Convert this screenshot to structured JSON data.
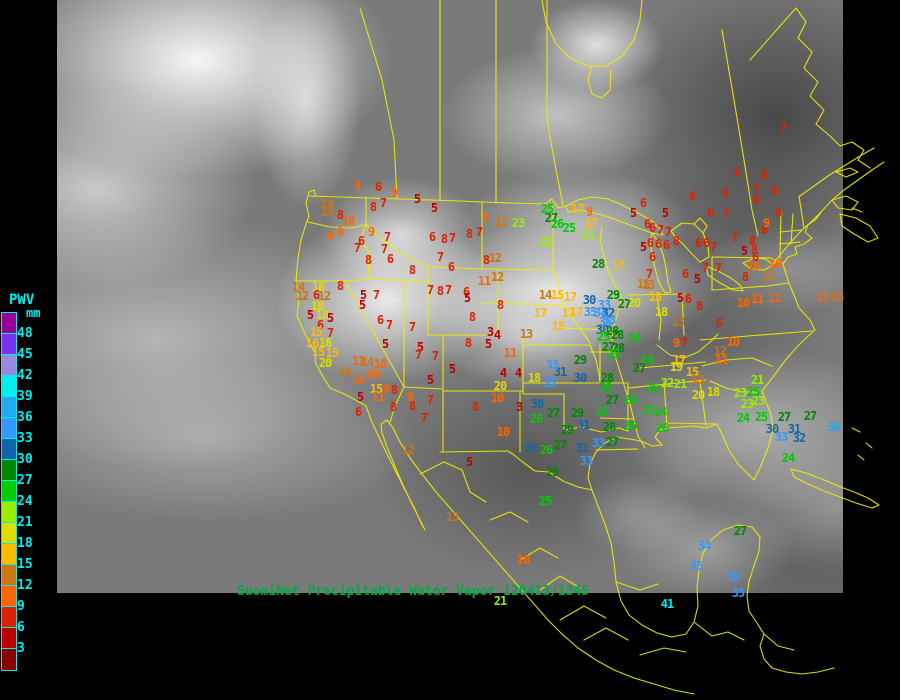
{
  "title": {
    "text": "SuomiNet Precipitable Water Vapor 120413/1345",
    "color": "#00AA44"
  },
  "legend": {
    "title": "PWV",
    "unit": "mm",
    "label_color": "#00EEEE",
    "labels": [
      48,
      45,
      42,
      39,
      36,
      33,
      30,
      27,
      24,
      21,
      18,
      15,
      12,
      9,
      6,
      3
    ],
    "colors_top_to_bottom": [
      "#990099",
      "#7733EE",
      "#9988DD",
      "#00EEEE",
      "#22AAEE",
      "#3399FF",
      "#1166AA",
      "#008800",
      "#00CC00",
      "#99EE00",
      "#DDDD00",
      "#FFBB00",
      "#CC7711",
      "#FF6600",
      "#DD2200",
      "#BB0000",
      "#880000"
    ]
  },
  "map": {
    "line_color": "#EEEE00",
    "background": "#000000"
  },
  "stations": [
    [
      9,
      357,
      186
    ],
    [
      6,
      378,
      187
    ],
    [
      9,
      394,
      193
    ],
    [
      5,
      417,
      199
    ],
    [
      14,
      327,
      204
    ],
    [
      7,
      383,
      203
    ],
    [
      8,
      373,
      207
    ],
    [
      14,
      327,
      212
    ],
    [
      8,
      340,
      215
    ],
    [
      10,
      348,
      221
    ],
    [
      5,
      434,
      208
    ],
    [
      9,
      485,
      218
    ],
    [
      9,
      340,
      232
    ],
    [
      9,
      330,
      236
    ],
    [
      9,
      371,
      232
    ],
    [
      7,
      387,
      237
    ],
    [
      6,
      361,
      241
    ],
    [
      7,
      357,
      248
    ],
    [
      7,
      384,
      249
    ],
    [
      6,
      390,
      259
    ],
    [
      8,
      368,
      260
    ],
    [
      6,
      432,
      237
    ],
    [
      8,
      444,
      239
    ],
    [
      7,
      452,
      238
    ],
    [
      8,
      469,
      234
    ],
    [
      7,
      479,
      232
    ],
    [
      6,
      451,
      267
    ],
    [
      7,
      440,
      257
    ],
    [
      8,
      412,
      270
    ],
    [
      12,
      495,
      258
    ],
    [
      8,
      486,
      260
    ],
    [
      12,
      501,
      222
    ],
    [
      23,
      518,
      223
    ],
    [
      25,
      547,
      209
    ],
    [
      27,
      551,
      218
    ],
    [
      26,
      557,
      224
    ],
    [
      25,
      569,
      228
    ],
    [
      22,
      545,
      242
    ],
    [
      17,
      577,
      209
    ],
    [
      9,
      589,
      212
    ],
    [
      17,
      591,
      223
    ],
    [
      21,
      588,
      235
    ],
    [
      28,
      598,
      264
    ],
    [
      17,
      618,
      265
    ],
    [
      6,
      643,
      203
    ],
    [
      5,
      633,
      213
    ],
    [
      6,
      652,
      228
    ],
    [
      7,
      660,
      230
    ],
    [
      6,
      650,
      243
    ],
    [
      6,
      658,
      244
    ],
    [
      6,
      666,
      245
    ],
    [
      8,
      676,
      241
    ],
    [
      5,
      643,
      247
    ],
    [
      6,
      652,
      257
    ],
    [
      13,
      648,
      285
    ],
    [
      6,
      692,
      196
    ],
    [
      7,
      783,
      128
    ],
    [
      6,
      647,
      224
    ],
    [
      7,
      430,
      290
    ],
    [
      8,
      440,
      291
    ],
    [
      7,
      448,
      290
    ],
    [
      6,
      466,
      292
    ],
    [
      5,
      467,
      298
    ],
    [
      11,
      484,
      281
    ],
    [
      12,
      497,
      277
    ],
    [
      8,
      500,
      305
    ],
    [
      8,
      472,
      317
    ],
    [
      5,
      488,
      344
    ],
    [
      3,
      490,
      332
    ],
    [
      4,
      497,
      335
    ],
    [
      5,
      362,
      305
    ],
    [
      6,
      380,
      320
    ],
    [
      7,
      389,
      325
    ],
    [
      7,
      412,
      327
    ],
    [
      5,
      385,
      344
    ],
    [
      5,
      420,
      347
    ],
    [
      8,
      468,
      343
    ],
    [
      11,
      358,
      361
    ],
    [
      14,
      367,
      362
    ],
    [
      10,
      380,
      364
    ],
    [
      15,
      376,
      389
    ],
    [
      9,
      386,
      389
    ],
    [
      8,
      394,
      390
    ],
    [
      5,
      360,
      397
    ],
    [
      11,
      378,
      397
    ],
    [
      9,
      410,
      397
    ],
    [
      6,
      358,
      412
    ],
    [
      8,
      393,
      407
    ],
    [
      8,
      412,
      406
    ],
    [
      7,
      430,
      400
    ],
    [
      7,
      424,
      418
    ],
    [
      7,
      418,
      355
    ],
    [
      7,
      435,
      356
    ],
    [
      5,
      430,
      380
    ],
    [
      5,
      452,
      369
    ],
    [
      4,
      503,
      373
    ],
    [
      4,
      518,
      373
    ],
    [
      8,
      475,
      407
    ],
    [
      3,
      519,
      407
    ],
    [
      14,
      298,
      287
    ],
    [
      18,
      318,
      287
    ],
    [
      8,
      340,
      286
    ],
    [
      12,
      302,
      296
    ],
    [
      6,
      316,
      295
    ],
    [
      12,
      324,
      296
    ],
    [
      5,
      363,
      295
    ],
    [
      7,
      376,
      295
    ],
    [
      18,
      317,
      306
    ],
    [
      5,
      310,
      315
    ],
    [
      18,
      322,
      315
    ],
    [
      5,
      330,
      318
    ],
    [
      6,
      320,
      325
    ],
    [
      15,
      316,
      332
    ],
    [
      7,
      330,
      333
    ],
    [
      16,
      312,
      343
    ],
    [
      18,
      325,
      343
    ],
    [
      15,
      318,
      352
    ],
    [
      20,
      325,
      363
    ],
    [
      14,
      345,
      372
    ],
    [
      10,
      358,
      380
    ],
    [
      10,
      373,
      374
    ],
    [
      15,
      332,
      353
    ],
    [
      14,
      545,
      295
    ],
    [
      15,
      557,
      295
    ],
    [
      17,
      570,
      297
    ],
    [
      17,
      540,
      313
    ],
    [
      17,
      576,
      312
    ],
    [
      15,
      558,
      326
    ],
    [
      30,
      589,
      300
    ],
    [
      29,
      613,
      295
    ],
    [
      33,
      604,
      305
    ],
    [
      27,
      624,
      304
    ],
    [
      20,
      634,
      303
    ],
    [
      17,
      568,
      313
    ],
    [
      35,
      590,
      312
    ],
    [
      34,
      600,
      313
    ],
    [
      32,
      608,
      313
    ],
    [
      33,
      609,
      320
    ],
    [
      35,
      605,
      322
    ],
    [
      30,
      602,
      330
    ],
    [
      28,
      612,
      331
    ],
    [
      25,
      603,
      337
    ],
    [
      28,
      617,
      335
    ],
    [
      24,
      634,
      338
    ],
    [
      27,
      608,
      347
    ],
    [
      28,
      618,
      348
    ],
    [
      25,
      613,
      354
    ],
    [
      13,
      526,
      334
    ],
    [
      11,
      510,
      353
    ],
    [
      18,
      534,
      378
    ],
    [
      20,
      500,
      386
    ],
    [
      10,
      497,
      398
    ],
    [
      31,
      560,
      372
    ],
    [
      29,
      580,
      360
    ],
    [
      30,
      580,
      378
    ],
    [
      28,
      607,
      378
    ],
    [
      33,
      552,
      365
    ],
    [
      35,
      549,
      383
    ],
    [
      30,
      537,
      404
    ],
    [
      27,
      553,
      413
    ],
    [
      26,
      536,
      419
    ],
    [
      29,
      577,
      413
    ],
    [
      25,
      602,
      412
    ],
    [
      29,
      567,
      430
    ],
    [
      27,
      560,
      445
    ],
    [
      31,
      583,
      425
    ],
    [
      31,
      582,
      448
    ],
    [
      26,
      546,
      450
    ],
    [
      30,
      530,
      448
    ],
    [
      33,
      586,
      461
    ],
    [
      29,
      552,
      472
    ],
    [
      33,
      598,
      443
    ],
    [
      27,
      612,
      442
    ],
    [
      28,
      609,
      427
    ],
    [
      24,
      647,
      360
    ],
    [
      27,
      639,
      368
    ],
    [
      26,
      605,
      387
    ],
    [
      27,
      612,
      400
    ],
    [
      24,
      630,
      400
    ],
    [
      22,
      667,
      383
    ],
    [
      21,
      680,
      384
    ],
    [
      26,
      652,
      388
    ],
    [
      25,
      648,
      410
    ],
    [
      24,
      660,
      412
    ],
    [
      26,
      630,
      426
    ],
    [
      26,
      662,
      428
    ],
    [
      9,
      676,
      343
    ],
    [
      7,
      684,
      343
    ],
    [
      17,
      679,
      360
    ],
    [
      19,
      676,
      367
    ],
    [
      15,
      692,
      372
    ],
    [
      13,
      697,
      380
    ],
    [
      12,
      720,
      351
    ],
    [
      11,
      721,
      360
    ],
    [
      10,
      733,
      342
    ],
    [
      20,
      698,
      395
    ],
    [
      18,
      713,
      392
    ],
    [
      21,
      757,
      380
    ],
    [
      23,
      740,
      393
    ],
    [
      25,
      753,
      392
    ],
    [
      23,
      747,
      404
    ],
    [
      23,
      758,
      401
    ],
    [
      24,
      743,
      418
    ],
    [
      25,
      761,
      417
    ],
    [
      27,
      784,
      417
    ],
    [
      27,
      810,
      416
    ],
    [
      30,
      772,
      429
    ],
    [
      31,
      794,
      429
    ],
    [
      33,
      781,
      437
    ],
    [
      32,
      799,
      438
    ],
    [
      36,
      833,
      427
    ],
    [
      24,
      788,
      458
    ],
    [
      13,
      643,
      284
    ],
    [
      7,
      649,
      274
    ],
    [
      15,
      655,
      297
    ],
    [
      5,
      680,
      298
    ],
    [
      6,
      688,
      299
    ],
    [
      8,
      699,
      306
    ],
    [
      18,
      661,
      312
    ],
    [
      13,
      678,
      322
    ],
    [
      6,
      685,
      274
    ],
    [
      7,
      705,
      268
    ],
    [
      5,
      697,
      279
    ],
    [
      7,
      718,
      268
    ],
    [
      6,
      719,
      323
    ],
    [
      10,
      743,
      303
    ],
    [
      11,
      757,
      299
    ],
    [
      11,
      774,
      298
    ],
    [
      8,
      745,
      277
    ],
    [
      12,
      768,
      276
    ],
    [
      10,
      753,
      266
    ],
    [
      10,
      775,
      264
    ],
    [
      6,
      755,
      257
    ],
    [
      8,
      754,
      250
    ],
    [
      5,
      744,
      251
    ],
    [
      7,
      734,
      238
    ],
    [
      6,
      764,
      230
    ],
    [
      9,
      766,
      223
    ],
    [
      6,
      778,
      213
    ],
    [
      7,
      726,
      214
    ],
    [
      6,
      710,
      213
    ],
    [
      8,
      756,
      200
    ],
    [
      7,
      756,
      189
    ],
    [
      8,
      774,
      191
    ],
    [
      6,
      725,
      193
    ],
    [
      6,
      737,
      172
    ],
    [
      8,
      764,
      175
    ],
    [
      7,
      713,
      247
    ],
    [
      6,
      698,
      243
    ],
    [
      6,
      706,
      243
    ],
    [
      5,
      665,
      213
    ],
    [
      7,
      668,
      232
    ],
    [
      8,
      752,
      241
    ],
    [
      13,
      837,
      297
    ],
    [
      11,
      822,
      297
    ],
    [
      12,
      408,
      450
    ],
    [
      5,
      469,
      462
    ],
    [
      13,
      452,
      517
    ],
    [
      10,
      523,
      560
    ],
    [
      10,
      503,
      432
    ],
    [
      25,
      545,
      501
    ],
    [
      21,
      500,
      601
    ],
    [
      27,
      740,
      531
    ],
    [
      34,
      704,
      546
    ],
    [
      35,
      696,
      566
    ],
    [
      35,
      733,
      577
    ],
    [
      35,
      738,
      593
    ],
    [
      41,
      667,
      604
    ]
  ]
}
